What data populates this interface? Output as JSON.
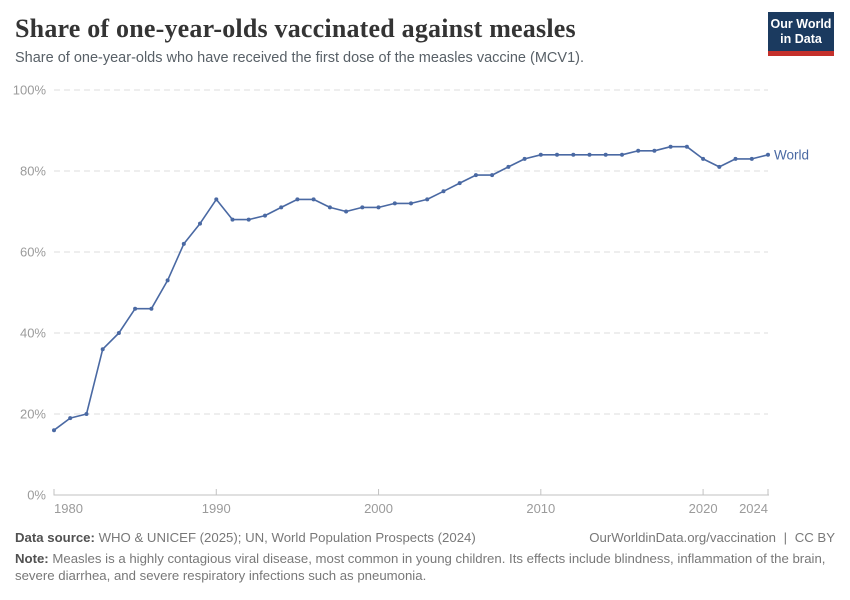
{
  "header": {
    "title": "Share of one-year-olds vaccinated against measles",
    "subtitle": "Share of one-year-olds who have received the first dose of the measles vaccine (MCV1).",
    "logo": {
      "line1": "Our World",
      "line2": "in Data",
      "bg_color": "#1b3a5f",
      "accent_color": "#c4302b"
    }
  },
  "chart_data": {
    "type": "line",
    "title": "Share of one-year-olds vaccinated against measles",
    "x": [
      1980,
      1981,
      1982,
      1983,
      1984,
      1985,
      1986,
      1987,
      1988,
      1989,
      1990,
      1991,
      1992,
      1993,
      1994,
      1995,
      1996,
      1997,
      1998,
      1999,
      2000,
      2001,
      2002,
      2003,
      2004,
      2005,
      2006,
      2007,
      2008,
      2009,
      2010,
      2011,
      2012,
      2013,
      2014,
      2015,
      2016,
      2017,
      2018,
      2019,
      2020,
      2021,
      2022,
      2023,
      2024
    ],
    "series": [
      {
        "name": "World",
        "color": "#4a69a3",
        "values": [
          16,
          19,
          20,
          36,
          40,
          46,
          46,
          53,
          62,
          67,
          73,
          68,
          68,
          69,
          71,
          73,
          73,
          71,
          70,
          71,
          71,
          72,
          72,
          73,
          75,
          77,
          79,
          79,
          81,
          83,
          84,
          84,
          84,
          84,
          84,
          84,
          85,
          85,
          86,
          86,
          83,
          81,
          83,
          83,
          84
        ]
      }
    ],
    "xlabel": "",
    "ylabel": "",
    "xlim": [
      1980,
      2024
    ],
    "ylim": [
      0,
      100
    ],
    "yticks": [
      0,
      20,
      40,
      60,
      80,
      100
    ],
    "ytick_labels": [
      "0%",
      "20%",
      "40%",
      "60%",
      "80%",
      "100%"
    ],
    "xticks": [
      1980,
      1990,
      2000,
      2010,
      2020,
      2024
    ],
    "xtick_labels": [
      "1980",
      "1990",
      "2000",
      "2010",
      "2020",
      "2024"
    ],
    "grid": "horizontal-dashed",
    "legend_position": "end-of-line",
    "end_label": "World"
  },
  "footer": {
    "datasource_label": "Data source:",
    "datasource_text": "WHO & UNICEF (2025); UN, World Population Prospects (2024)",
    "link_text": "OurWorldinData.org/vaccination",
    "link_separator": "|",
    "license_text": "CC BY",
    "note_label": "Note:",
    "note_text": "Measles is a highly contagious viral disease, most common in young children. Its effects include blindness, inflammation of the brain, severe diarrhea, and severe respiratory infections such as pneumonia."
  },
  "colors": {
    "line": "#4a69a3",
    "grid": "#dcdcdc",
    "axis": "#c2c2c2",
    "tick_label": "#9b9b9b",
    "title": "#343434",
    "subtitle": "#586067",
    "footer_label": "#515151",
    "footer_text": "#787878"
  }
}
